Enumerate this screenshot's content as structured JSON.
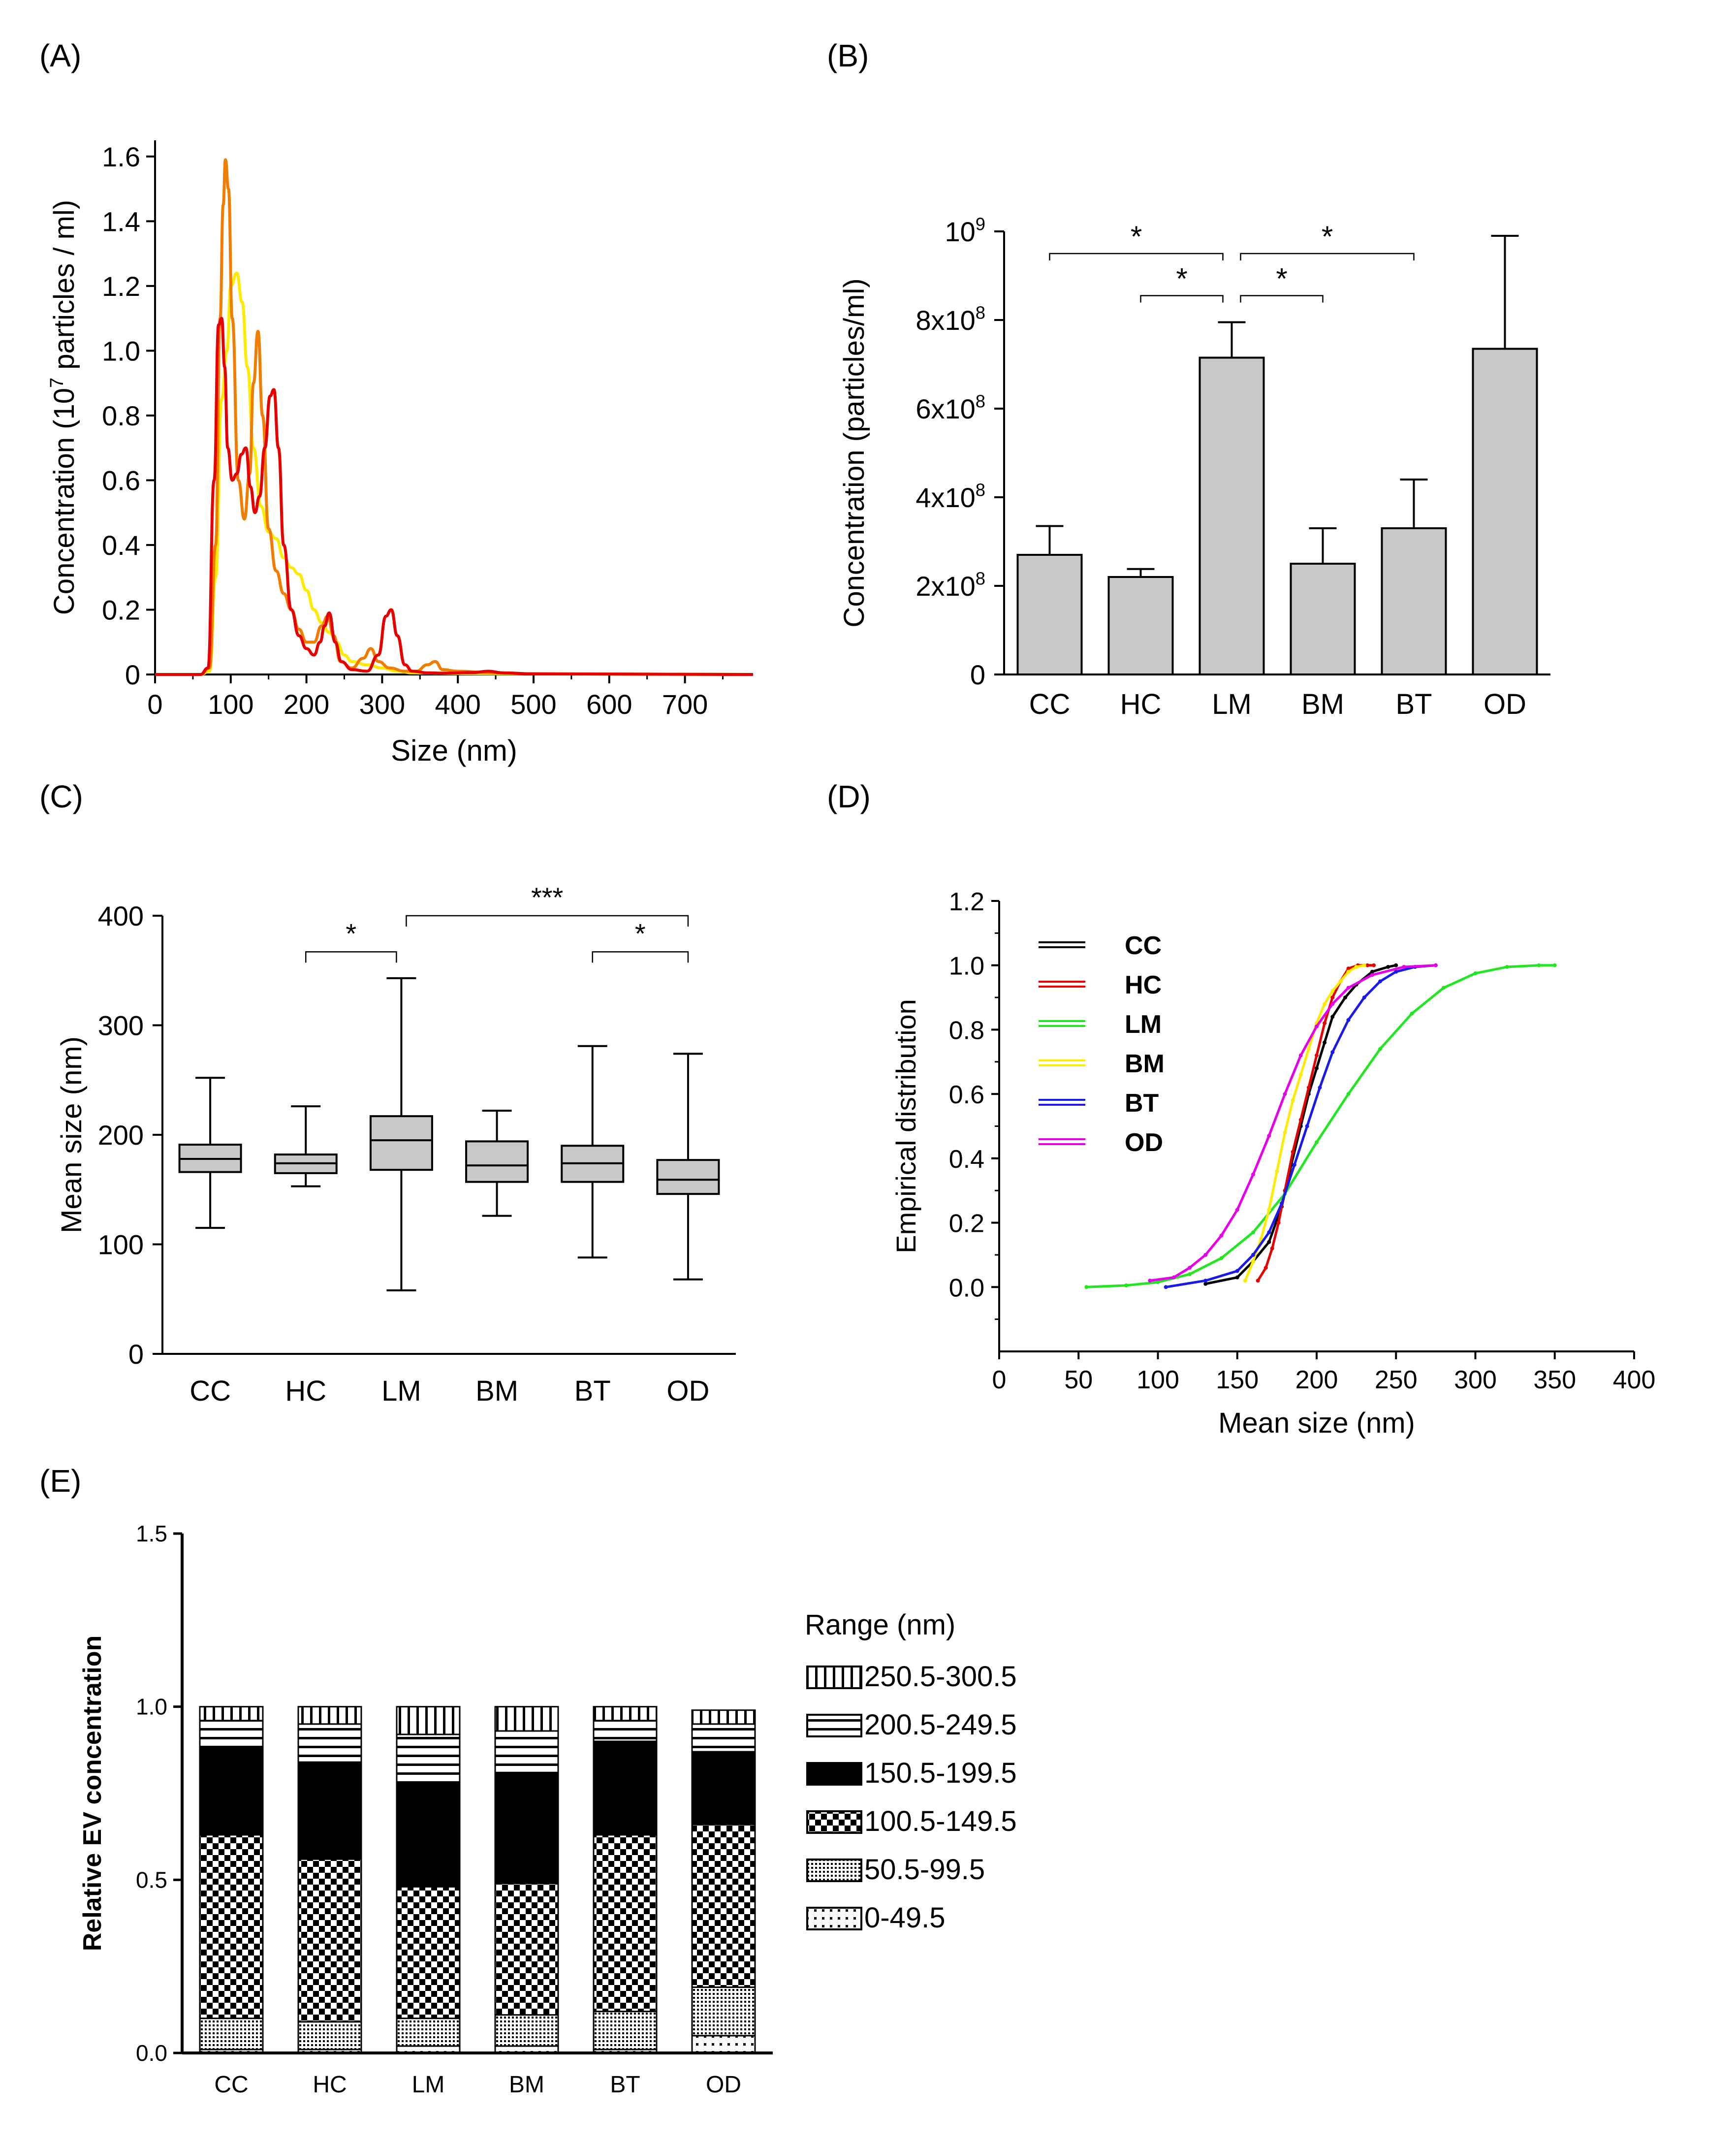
{
  "panel_labels": {
    "a": "(A)",
    "b": "(B)",
    "c": "(C)",
    "d": "(D)",
    "e": "(E)"
  },
  "chart_data": [
    {
      "panel": "A",
      "type": "line",
      "xlabel": "Size (nm)",
      "ylabel_parts": [
        "Concentration (10",
        "7",
        " particles / ml)"
      ],
      "xlim": [
        0,
        790
      ],
      "ylim": [
        0,
        1.65
      ],
      "xticks": [
        0,
        100,
        200,
        300,
        400,
        500,
        600,
        700
      ],
      "yticks": [
        0,
        0.2,
        0.4,
        0.6,
        0.8,
        1.0,
        1.2,
        1.4,
        1.6
      ],
      "ytick_labels": [
        "0",
        "0.2",
        "0.4",
        "0.6",
        "0.8",
        "1.0",
        "1.2",
        "1.4",
        "1.6"
      ],
      "grid": false,
      "series": [
        {
          "color": "#ffeb00",
          "x": [
            0,
            60,
            72,
            80,
            88,
            95,
            100,
            108,
            115,
            122,
            130,
            140,
            150,
            160,
            170,
            180,
            190,
            200,
            210,
            220,
            230,
            240,
            250,
            260,
            280,
            300,
            320,
            340,
            400,
            500,
            790
          ],
          "y": [
            0,
            0,
            0.01,
            0.3,
            0.85,
            1.0,
            1.2,
            1.24,
            1.15,
            0.95,
            0.7,
            0.52,
            0.44,
            0.42,
            0.36,
            0.33,
            0.31,
            0.26,
            0.2,
            0.16,
            0.13,
            0.1,
            0.06,
            0.04,
            0.03,
            0.02,
            0.01,
            0.005,
            0.003,
            0.002,
            0
          ]
        },
        {
          "color": "#f07d00",
          "x": [
            0,
            60,
            72,
            80,
            86,
            90,
            93,
            97,
            102,
            110,
            118,
            125,
            130,
            136,
            142,
            150,
            160,
            170,
            180,
            190,
            200,
            210,
            220,
            228,
            236,
            245,
            260,
            275,
            285,
            295,
            310,
            330,
            345,
            360,
            370,
            380,
            400,
            450,
            500,
            790
          ],
          "y": [
            0,
            0,
            0.02,
            0.4,
            1.1,
            1.45,
            1.59,
            1.5,
            1.1,
            0.6,
            0.48,
            0.62,
            0.9,
            1.06,
            0.8,
            0.45,
            0.32,
            0.25,
            0.2,
            0.14,
            0.1,
            0.1,
            0.15,
            0.18,
            0.12,
            0.04,
            0.02,
            0.05,
            0.08,
            0.04,
            0.02,
            0.01,
            0.01,
            0.03,
            0.04,
            0.015,
            0.01,
            0.005,
            0.002,
            0
          ]
        },
        {
          "color": "#e60000",
          "x": [
            0,
            60,
            70,
            78,
            84,
            88,
            92,
            96,
            102,
            108,
            114,
            120,
            126,
            132,
            138,
            145,
            152,
            157,
            163,
            170,
            180,
            190,
            200,
            210,
            218,
            224,
            230,
            238,
            246,
            260,
            280,
            295,
            305,
            312,
            320,
            330,
            340,
            360,
            380,
            420,
            440,
            460,
            500,
            790
          ],
          "y": [
            0,
            0,
            0.02,
            0.6,
            1.08,
            1.1,
            0.95,
            0.7,
            0.6,
            0.62,
            0.68,
            0.7,
            0.58,
            0.5,
            0.55,
            0.7,
            0.86,
            0.88,
            0.7,
            0.4,
            0.2,
            0.12,
            0.08,
            0.06,
            0.1,
            0.15,
            0.19,
            0.1,
            0.04,
            0.015,
            0.01,
            0.06,
            0.18,
            0.2,
            0.12,
            0.03,
            0.01,
            0.005,
            0.004,
            0.006,
            0.01,
            0.005,
            0.002,
            0
          ]
        }
      ]
    },
    {
      "panel": "B",
      "type": "bar",
      "ylabel": "Concentration (particles/ml)",
      "categories": [
        "CC",
        "HC",
        "LM",
        "BM",
        "BT",
        "OD"
      ],
      "values": [
        270000000.0,
        220000000.0,
        715000000.0,
        250000000.0,
        330000000.0,
        735000000.0
      ],
      "errors": [
        65000000.0,
        18000000.0,
        80000000.0,
        80000000.0,
        110000000.0,
        255000000.0
      ],
      "ylim": [
        0,
        1000000000.0
      ],
      "yticks": [
        0,
        200000000.0,
        400000000.0,
        600000000.0,
        800000000.0,
        1000000000.0
      ],
      "ytick_labels": [
        {
          "base": "0",
          "exp": ""
        },
        {
          "base": "2x10",
          "exp": "8"
        },
        {
          "base": "4x10",
          "exp": "8"
        },
        {
          "base": "6x10",
          "exp": "8"
        },
        {
          "base": "8x10",
          "exp": "8"
        },
        {
          "base": "10",
          "exp": "9"
        }
      ],
      "bar_color": "#c8c8c8",
      "significance": [
        {
          "from": "CC",
          "to": "LM",
          "label": "*",
          "level": 950000000.0
        },
        {
          "from": "LM",
          "to": "BT",
          "label": "*",
          "level": 950000000.0
        },
        {
          "from": "HC",
          "to": "LM",
          "label": "*",
          "level": 855000000.0
        },
        {
          "from": "LM",
          "to": "BM",
          "label": "*",
          "level": 855000000.0
        }
      ]
    },
    {
      "panel": "C",
      "type": "box",
      "ylabel": "Mean size (nm)",
      "categories": [
        "CC",
        "HC",
        "LM",
        "BM",
        "BT",
        "OD"
      ],
      "ylim": [
        0,
        400
      ],
      "yticks": [
        0,
        100,
        200,
        300,
        400
      ],
      "box_color": "#c8c8c8",
      "boxes": [
        {
          "min": 115,
          "q1": 166,
          "median": 178,
          "q3": 191,
          "max": 252
        },
        {
          "min": 153,
          "q1": 165,
          "median": 174,
          "q3": 182,
          "max": 226
        },
        {
          "min": 58,
          "q1": 168,
          "median": 195,
          "q3": 217,
          "max": 343
        },
        {
          "min": 126,
          "q1": 157,
          "median": 172,
          "q3": 194,
          "max": 222
        },
        {
          "min": 88,
          "q1": 157,
          "median": 174,
          "q3": 190,
          "max": 281
        },
        {
          "min": 68,
          "q1": 146,
          "median": 159,
          "q3": 177,
          "max": 274
        }
      ],
      "significance": [
        {
          "from": "HC",
          "to": "LM",
          "label": "*",
          "level": 367
        },
        {
          "from": "LM",
          "to": "OD",
          "label": "***",
          "level": 400
        },
        {
          "from": "BT",
          "to": "OD",
          "label": "*",
          "level": 367
        }
      ]
    },
    {
      "panel": "D",
      "type": "line",
      "xlabel": "Mean size (nm)",
      "ylabel": "Empirical distribution",
      "xlim": [
        0,
        400
      ],
      "ylim": [
        -0.2,
        1.2
      ],
      "xticks": [
        0,
        50,
        100,
        150,
        200,
        250,
        300,
        350,
        400
      ],
      "yticks": [
        0,
        0.2,
        0.4,
        0.6,
        0.8,
        1.0,
        1.2
      ],
      "ytick_labels": [
        "0.0",
        "0.2",
        "0.4",
        "0.6",
        "0.8",
        "1.0",
        "1.2"
      ],
      "legend_position": "top-left",
      "series": [
        {
          "name": "CC",
          "color": "#000000",
          "x": [
            130,
            150,
            160,
            170,
            178,
            184,
            190,
            195,
            200,
            205,
            210,
            218,
            225,
            235,
            245,
            250
          ],
          "y": [
            0.01,
            0.03,
            0.08,
            0.14,
            0.25,
            0.38,
            0.5,
            0.6,
            0.68,
            0.76,
            0.84,
            0.9,
            0.94,
            0.98,
            0.995,
            1.0
          ]
        },
        {
          "name": "HC",
          "color": "#e60000",
          "x": [
            163,
            168,
            172,
            176,
            180,
            185,
            190,
            195,
            200,
            205,
            210,
            215,
            220,
            226,
            232,
            236
          ],
          "y": [
            0.02,
            0.06,
            0.12,
            0.2,
            0.3,
            0.42,
            0.52,
            0.62,
            0.72,
            0.82,
            0.9,
            0.95,
            0.99,
            1.0,
            1.0,
            1.0
          ]
        },
        {
          "name": "LM",
          "color": "#22e622",
          "x": [
            55,
            80,
            100,
            120,
            140,
            160,
            180,
            200,
            220,
            240,
            260,
            280,
            300,
            320,
            340,
            350
          ],
          "y": [
            0.0,
            0.005,
            0.015,
            0.04,
            0.09,
            0.17,
            0.29,
            0.45,
            0.6,
            0.74,
            0.85,
            0.93,
            0.975,
            0.995,
            1.0,
            1.0
          ]
        },
        {
          "name": "BM",
          "color": "#ffeb00",
          "x": [
            155,
            160,
            165,
            170,
            175,
            180,
            185,
            190,
            195,
            200,
            205,
            210,
            215,
            220,
            225,
            230
          ],
          "y": [
            0.02,
            0.08,
            0.15,
            0.24,
            0.36,
            0.48,
            0.58,
            0.66,
            0.74,
            0.82,
            0.88,
            0.92,
            0.95,
            0.98,
            0.995,
            1.0
          ]
        },
        {
          "name": "BT",
          "color": "#1a1ae6",
          "x": [
            105,
            130,
            150,
            160,
            170,
            178,
            186,
            194,
            202,
            210,
            220,
            230,
            240,
            250,
            262,
            275
          ],
          "y": [
            0.0,
            0.02,
            0.05,
            0.1,
            0.17,
            0.26,
            0.38,
            0.5,
            0.62,
            0.73,
            0.83,
            0.9,
            0.95,
            0.98,
            0.995,
            1.0
          ]
        },
        {
          "name": "OD",
          "color": "#e600e6",
          "x": [
            95,
            110,
            120,
            130,
            140,
            150,
            160,
            170,
            180,
            190,
            200,
            210,
            220,
            235,
            255,
            275
          ],
          "y": [
            0.02,
            0.03,
            0.06,
            0.1,
            0.16,
            0.24,
            0.35,
            0.47,
            0.6,
            0.72,
            0.81,
            0.88,
            0.93,
            0.97,
            0.995,
            1.0
          ]
        }
      ]
    },
    {
      "panel": "E",
      "type": "bar",
      "stacked": true,
      "ylabel": "Relative EV concentration",
      "categories": [
        "CC",
        "HC",
        "LM",
        "BM",
        "BT",
        "OD"
      ],
      "ylim": [
        0,
        1.5
      ],
      "yticks": [
        0,
        0.5,
        1.0,
        1.5
      ],
      "ytick_labels": [
        "0.0",
        "0.5",
        "1.0",
        "1.5"
      ],
      "legend_title": "Range (nm)",
      "legend_position": "right",
      "series": [
        {
          "name": "0-49.5",
          "pattern": "dots",
          "values": [
            0.01,
            0.01,
            0.02,
            0.02,
            0.01,
            0.05
          ]
        },
        {
          "name": "50.5-99.5",
          "pattern": "fine-grid",
          "values": [
            0.09,
            0.08,
            0.08,
            0.09,
            0.11,
            0.14
          ]
        },
        {
          "name": "100.5-149.5",
          "pattern": "checker",
          "values": [
            0.53,
            0.47,
            0.38,
            0.38,
            0.51,
            0.47
          ]
        },
        {
          "name": "150.5-199.5",
          "pattern": "solid",
          "values": [
            0.25,
            0.28,
            0.3,
            0.32,
            0.27,
            0.21
          ]
        },
        {
          "name": "200.5-249.5",
          "pattern": "horizontal",
          "values": [
            0.08,
            0.11,
            0.14,
            0.12,
            0.06,
            0.08
          ]
        },
        {
          "name": "250.5-300.5",
          "pattern": "vertical",
          "values": [
            0.04,
            0.05,
            0.08,
            0.07,
            0.04,
            0.04
          ]
        }
      ]
    }
  ]
}
